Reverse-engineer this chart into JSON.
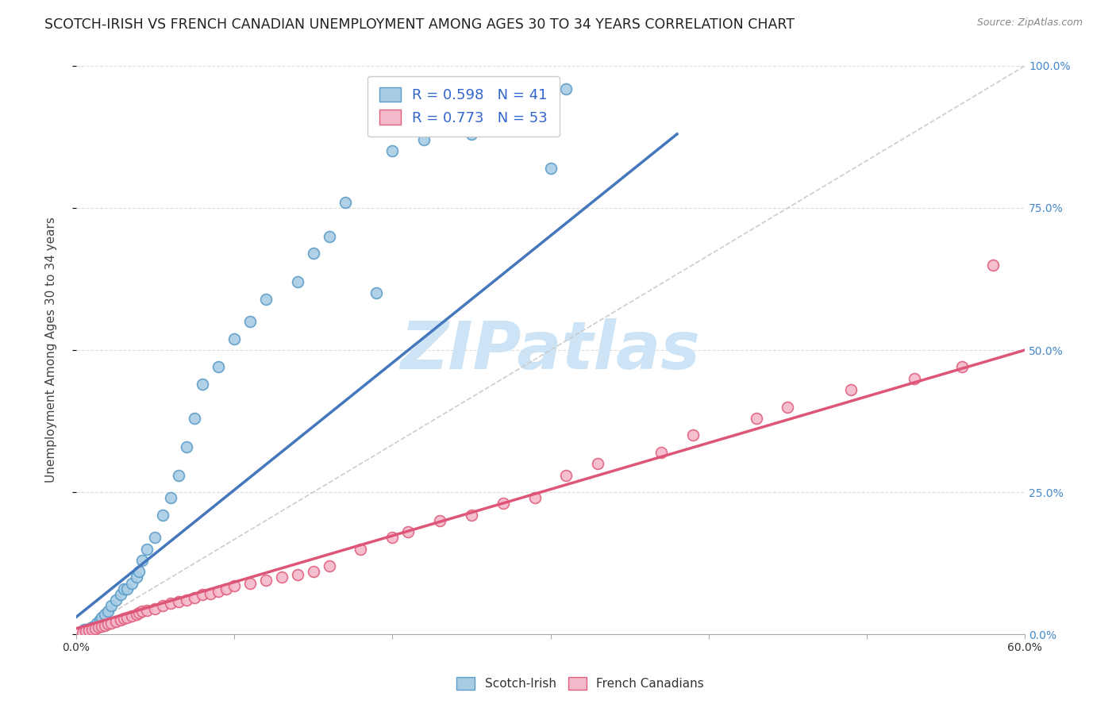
{
  "title": "SCOTCH-IRISH VS FRENCH CANADIAN UNEMPLOYMENT AMONG AGES 30 TO 34 YEARS CORRELATION CHART",
  "source": "Source: ZipAtlas.com",
  "xlabel": "",
  "ylabel": "Unemployment Among Ages 30 to 34 years",
  "xlim": [
    0,
    0.6
  ],
  "ylim": [
    0,
    1.0
  ],
  "xticks": [
    0.0,
    0.1,
    0.2,
    0.3,
    0.4,
    0.5,
    0.6
  ],
  "xticklabels": [
    "0.0%",
    "",
    "",
    "",
    "",
    "",
    "60.0%"
  ],
  "yticks": [
    0.0,
    0.25,
    0.5,
    0.75,
    1.0
  ],
  "ytick_labels_right": [
    "0.0%",
    "25.0%",
    "50.0%",
    "75.0%",
    "100.0%"
  ],
  "scotch_irish_color": "#a8cce4",
  "scotch_irish_edge": "#5b9dc9",
  "french_canadian_color": "#f4b8cb",
  "french_canadian_edge": "#e0607e",
  "trendline_blue": "#4477bb",
  "trendline_pink": "#dd5577",
  "trendline_gray": "#cccccc",
  "R_scotch": 0.598,
  "N_scotch": 41,
  "R_french": 0.773,
  "N_french": 53,
  "scotch_irish_x": [
    0.005,
    0.008,
    0.01,
    0.012,
    0.013,
    0.015,
    0.016,
    0.018,
    0.02,
    0.022,
    0.025,
    0.028,
    0.03,
    0.032,
    0.035,
    0.038,
    0.04,
    0.042,
    0.045,
    0.05,
    0.055,
    0.06,
    0.065,
    0.07,
    0.075,
    0.08,
    0.09,
    0.1,
    0.11,
    0.12,
    0.14,
    0.15,
    0.16,
    0.17,
    0.19,
    0.2,
    0.22,
    0.25,
    0.26,
    0.3,
    0.31
  ],
  "scotch_irish_y": [
    0.008,
    0.01,
    0.012,
    0.015,
    0.02,
    0.025,
    0.03,
    0.035,
    0.04,
    0.05,
    0.06,
    0.07,
    0.08,
    0.08,
    0.09,
    0.1,
    0.11,
    0.13,
    0.15,
    0.17,
    0.21,
    0.24,
    0.28,
    0.33,
    0.38,
    0.44,
    0.47,
    0.52,
    0.55,
    0.59,
    0.62,
    0.67,
    0.7,
    0.76,
    0.6,
    0.85,
    0.87,
    0.88,
    0.94,
    0.82,
    0.96
  ],
  "french_canadian_x": [
    0.004,
    0.006,
    0.008,
    0.01,
    0.012,
    0.014,
    0.016,
    0.018,
    0.02,
    0.022,
    0.025,
    0.028,
    0.03,
    0.032,
    0.035,
    0.038,
    0.04,
    0.042,
    0.045,
    0.05,
    0.055,
    0.06,
    0.065,
    0.07,
    0.075,
    0.08,
    0.085,
    0.09,
    0.095,
    0.1,
    0.11,
    0.12,
    0.13,
    0.14,
    0.15,
    0.16,
    0.18,
    0.2,
    0.21,
    0.23,
    0.25,
    0.27,
    0.29,
    0.31,
    0.33,
    0.37,
    0.39,
    0.43,
    0.45,
    0.49,
    0.53,
    0.56,
    0.58
  ],
  "french_canadian_y": [
    0.003,
    0.005,
    0.007,
    0.008,
    0.01,
    0.012,
    0.014,
    0.015,
    0.018,
    0.02,
    0.022,
    0.025,
    0.028,
    0.03,
    0.032,
    0.035,
    0.038,
    0.04,
    0.042,
    0.045,
    0.05,
    0.055,
    0.058,
    0.06,
    0.065,
    0.07,
    0.072,
    0.075,
    0.08,
    0.085,
    0.09,
    0.095,
    0.1,
    0.105,
    0.11,
    0.12,
    0.15,
    0.17,
    0.18,
    0.2,
    0.21,
    0.23,
    0.24,
    0.28,
    0.3,
    0.32,
    0.35,
    0.38,
    0.4,
    0.43,
    0.45,
    0.47,
    0.65
  ],
  "blue_trend_x": [
    0.0,
    0.38
  ],
  "blue_trend_y": [
    0.03,
    0.88
  ],
  "pink_trend_x": [
    0.0,
    0.6
  ],
  "pink_trend_y": [
    0.01,
    0.5
  ],
  "watermark_text": "ZIPatlas",
  "watermark_color": "#cce4f5",
  "background_color": "#ffffff",
  "grid_color": "#dddddd",
  "title_fontsize": 12.5,
  "axis_label_fontsize": 11,
  "tick_fontsize": 10,
  "legend_fontsize": 13
}
